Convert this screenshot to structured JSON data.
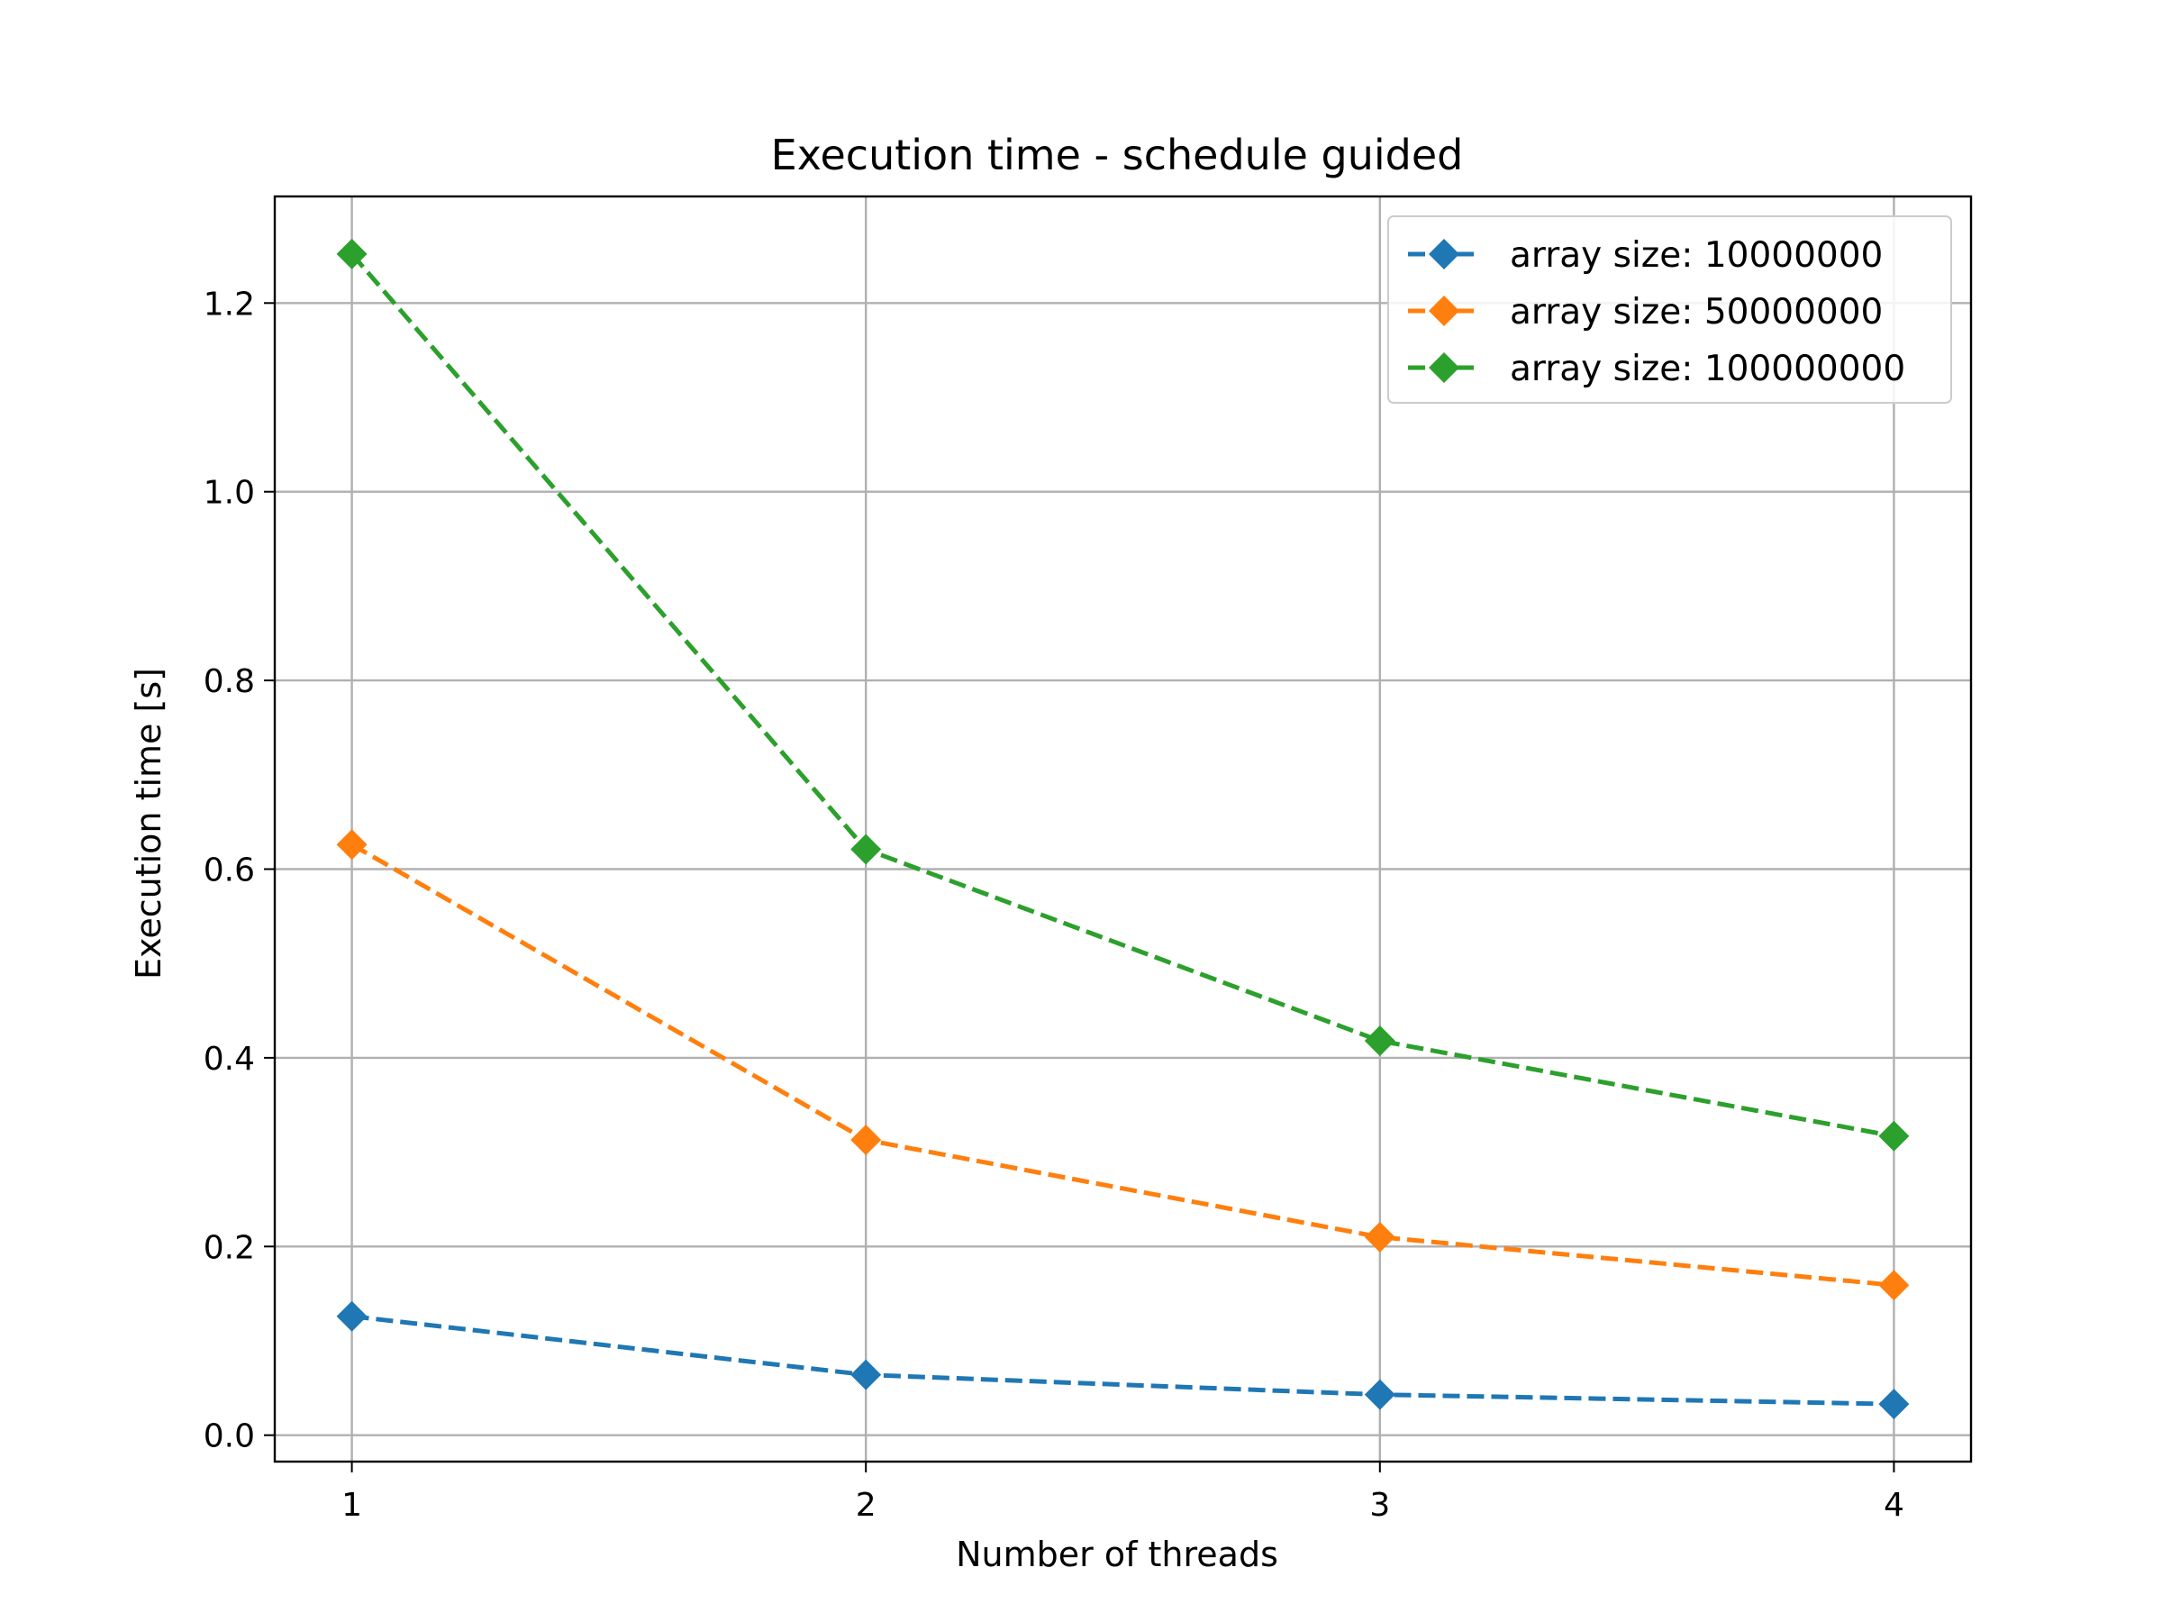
{
  "chart_data": {
    "type": "line",
    "title": "Execution time - schedule guided",
    "xlabel": "Number of threads",
    "ylabel": "Execution time [s]",
    "x": [
      1,
      2,
      3,
      4
    ],
    "xticks": [
      "1",
      "2",
      "3",
      "4"
    ],
    "yticks": [
      "0.0",
      "0.2",
      "0.4",
      "0.6",
      "0.8",
      "1.0",
      "1.2"
    ],
    "xlim": [
      0.85,
      4.15
    ],
    "ylim": [
      -0.028,
      1.313
    ],
    "grid": true,
    "legend_position": "top-right",
    "series": [
      {
        "name": "array size: 10000000",
        "color": "#1f77b4",
        "marker": "diamond",
        "linestyle": "dashed",
        "values": [
          0.126,
          0.064,
          0.043,
          0.033
        ]
      },
      {
        "name": "array size: 50000000",
        "color": "#ff7f0e",
        "marker": "diamond",
        "linestyle": "dashed",
        "values": [
          0.626,
          0.313,
          0.21,
          0.159
        ]
      },
      {
        "name": "array size: 100000000",
        "color": "#2ca02c",
        "marker": "diamond",
        "linestyle": "dashed",
        "values": [
          1.252,
          0.621,
          0.418,
          0.317
        ]
      }
    ]
  }
}
